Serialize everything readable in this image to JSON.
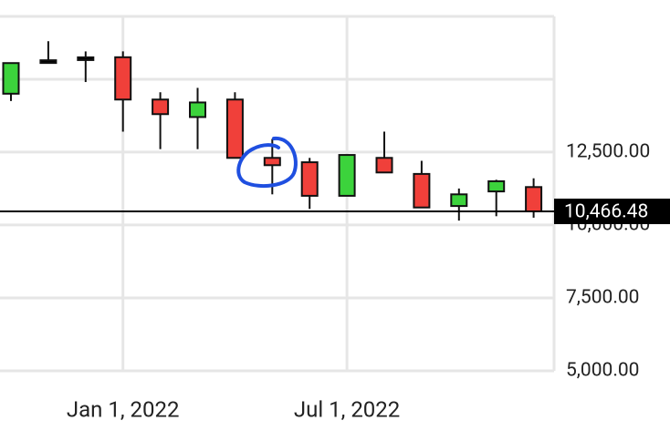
{
  "chart_data": {
    "type": "candlestick",
    "categories": [
      null,
      null,
      null,
      "Jan 1, 2022",
      null,
      null,
      null,
      null,
      null,
      "Jul 1, 2022",
      null,
      null,
      null,
      null,
      null
    ],
    "open": [
      14500,
      15600,
      15700,
      15750,
      14300,
      13700,
      14300,
      12300,
      12150,
      11000,
      12300,
      11750,
      10650,
      11150,
      11300
    ],
    "high": [
      15550,
      16300,
      15950,
      15950,
      14550,
      14700,
      14550,
      12950,
      12300,
      12400,
      13200,
      12200,
      11250,
      11550,
      11600
    ],
    "low": [
      14250,
      15600,
      14900,
      13200,
      12600,
      12600,
      12300,
      11050,
      10550,
      11000,
      11800,
      10600,
      10150,
      10300,
      10250
    ],
    "close": [
      15550,
      15600,
      15700,
      14300,
      13800,
      14200,
      12300,
      12050,
      11000,
      12400,
      11800,
      10600,
      11050,
      11500,
      10466.48
    ],
    "up_color": "#3cd33c",
    "down_color": "#f0403a",
    "flat_color": "#000000",
    "ylim": [
      5000,
      17150
    ],
    "yticks": [
      {
        "value": 5000,
        "label": "5,000.00"
      },
      {
        "value": 7500,
        "label": "7,500.00"
      },
      {
        "value": 10000,
        "label": "10,000.00"
      },
      {
        "value": 12500,
        "label": "12,500.00"
      }
    ],
    "grid": true,
    "price_label": {
      "value": 10466.48,
      "label": "10,466.48"
    }
  }
}
